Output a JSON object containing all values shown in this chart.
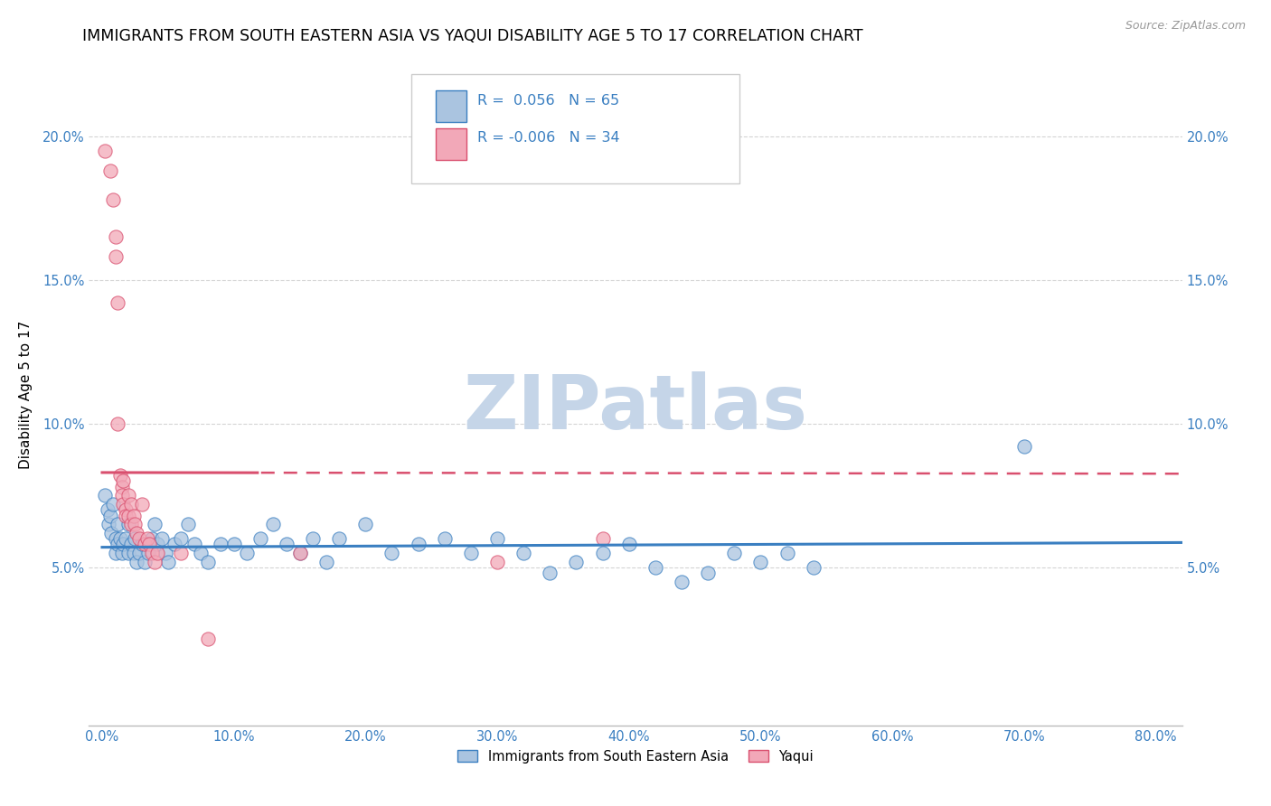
{
  "title": "IMMIGRANTS FROM SOUTH EASTERN ASIA VS YAQUI DISABILITY AGE 5 TO 17 CORRELATION CHART",
  "source": "Source: ZipAtlas.com",
  "ylabel": "Disability Age 5 to 17",
  "xlim": [
    -0.01,
    0.82
  ],
  "ylim": [
    -0.005,
    0.225
  ],
  "xtick_labels": [
    "0.0%",
    "10.0%",
    "20.0%",
    "30.0%",
    "40.0%",
    "50.0%",
    "60.0%",
    "70.0%",
    "80.0%"
  ],
  "xtick_vals": [
    0.0,
    0.1,
    0.2,
    0.3,
    0.4,
    0.5,
    0.6,
    0.7,
    0.8
  ],
  "ytick_labels": [
    "5.0%",
    "10.0%",
    "15.0%",
    "20.0%"
  ],
  "ytick_vals": [
    0.05,
    0.1,
    0.15,
    0.2
  ],
  "blue_R": "0.056",
  "blue_N": "65",
  "pink_R": "-0.006",
  "pink_N": "34",
  "legend_label_blue": "Immigrants from South Eastern Asia",
  "legend_label_pink": "Yaqui",
  "blue_color": "#aac4e0",
  "pink_color": "#f2a8b8",
  "blue_line_color": "#3a7fc1",
  "pink_line_color": "#d94f6e",
  "blue_scatter": [
    [
      0.002,
      0.075
    ],
    [
      0.004,
      0.07
    ],
    [
      0.005,
      0.065
    ],
    [
      0.006,
      0.068
    ],
    [
      0.007,
      0.062
    ],
    [
      0.008,
      0.072
    ],
    [
      0.01,
      0.06
    ],
    [
      0.01,
      0.055
    ],
    [
      0.012,
      0.058
    ],
    [
      0.012,
      0.065
    ],
    [
      0.014,
      0.06
    ],
    [
      0.015,
      0.055
    ],
    [
      0.016,
      0.058
    ],
    [
      0.018,
      0.06
    ],
    [
      0.02,
      0.055
    ],
    [
      0.02,
      0.065
    ],
    [
      0.022,
      0.058
    ],
    [
      0.024,
      0.055
    ],
    [
      0.025,
      0.06
    ],
    [
      0.026,
      0.052
    ],
    [
      0.028,
      0.055
    ],
    [
      0.03,
      0.058
    ],
    [
      0.032,
      0.052
    ],
    [
      0.035,
      0.055
    ],
    [
      0.038,
      0.06
    ],
    [
      0.04,
      0.065
    ],
    [
      0.042,
      0.058
    ],
    [
      0.045,
      0.06
    ],
    [
      0.048,
      0.055
    ],
    [
      0.05,
      0.052
    ],
    [
      0.055,
      0.058
    ],
    [
      0.06,
      0.06
    ],
    [
      0.065,
      0.065
    ],
    [
      0.07,
      0.058
    ],
    [
      0.075,
      0.055
    ],
    [
      0.08,
      0.052
    ],
    [
      0.09,
      0.058
    ],
    [
      0.1,
      0.058
    ],
    [
      0.11,
      0.055
    ],
    [
      0.12,
      0.06
    ],
    [
      0.13,
      0.065
    ],
    [
      0.14,
      0.058
    ],
    [
      0.15,
      0.055
    ],
    [
      0.16,
      0.06
    ],
    [
      0.17,
      0.052
    ],
    [
      0.18,
      0.06
    ],
    [
      0.2,
      0.065
    ],
    [
      0.22,
      0.055
    ],
    [
      0.24,
      0.058
    ],
    [
      0.26,
      0.06
    ],
    [
      0.28,
      0.055
    ],
    [
      0.3,
      0.06
    ],
    [
      0.32,
      0.055
    ],
    [
      0.34,
      0.048
    ],
    [
      0.36,
      0.052
    ],
    [
      0.38,
      0.055
    ],
    [
      0.4,
      0.058
    ],
    [
      0.42,
      0.05
    ],
    [
      0.44,
      0.045
    ],
    [
      0.46,
      0.048
    ],
    [
      0.48,
      0.055
    ],
    [
      0.5,
      0.052
    ],
    [
      0.52,
      0.055
    ],
    [
      0.54,
      0.05
    ],
    [
      0.7,
      0.092
    ]
  ],
  "pink_scatter": [
    [
      0.002,
      0.195
    ],
    [
      0.006,
      0.188
    ],
    [
      0.008,
      0.178
    ],
    [
      0.01,
      0.165
    ],
    [
      0.01,
      0.158
    ],
    [
      0.012,
      0.142
    ],
    [
      0.012,
      0.1
    ],
    [
      0.014,
      0.082
    ],
    [
      0.015,
      0.078
    ],
    [
      0.015,
      0.075
    ],
    [
      0.016,
      0.072
    ],
    [
      0.016,
      0.08
    ],
    [
      0.018,
      0.07
    ],
    [
      0.018,
      0.068
    ],
    [
      0.02,
      0.075
    ],
    [
      0.02,
      0.068
    ],
    [
      0.022,
      0.065
    ],
    [
      0.022,
      0.072
    ],
    [
      0.024,
      0.068
    ],
    [
      0.025,
      0.065
    ],
    [
      0.026,
      0.062
    ],
    [
      0.028,
      0.06
    ],
    [
      0.03,
      0.072
    ],
    [
      0.032,
      0.058
    ],
    [
      0.034,
      0.06
    ],
    [
      0.036,
      0.058
    ],
    [
      0.038,
      0.055
    ],
    [
      0.04,
      0.052
    ],
    [
      0.042,
      0.055
    ],
    [
      0.06,
      0.055
    ],
    [
      0.08,
      0.025
    ],
    [
      0.15,
      0.055
    ],
    [
      0.3,
      0.052
    ],
    [
      0.38,
      0.06
    ]
  ],
  "background_color": "#ffffff",
  "grid_color": "#d0d0d0",
  "title_fontsize": 12.5,
  "axis_label_fontsize": 11,
  "tick_fontsize": 10.5,
  "watermark_text": "ZIPatlas",
  "watermark_color": "#c5d5e8",
  "watermark_fontsize": 60,
  "blue_line_intercept": 0.057,
  "blue_line_slope": 0.002,
  "pink_line_intercept": 0.083,
  "pink_line_slope": -0.0005
}
